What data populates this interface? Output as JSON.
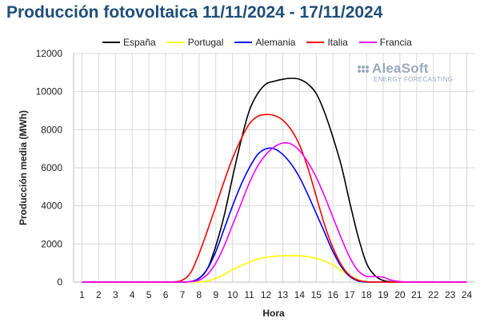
{
  "chart_data": {
    "type": "line",
    "title": "Producción fotovoltaica 11/11/2024 - 17/11/2024",
    "xlabel": "Hora",
    "ylabel": "Producción media (MWh)",
    "ylim": [
      0,
      12000
    ],
    "yticks": [
      0,
      2000,
      4000,
      6000,
      8000,
      10000,
      12000
    ],
    "x": [
      1,
      1.5,
      2,
      2.5,
      3,
      3.5,
      4,
      4.5,
      5,
      5.5,
      6,
      6.5,
      7,
      7.5,
      8,
      8.5,
      9,
      9.5,
      10,
      10.5,
      11,
      11.5,
      12,
      12.5,
      13,
      13.5,
      14,
      14.5,
      15,
      15.5,
      16,
      16.5,
      17,
      17.5,
      18,
      18.5,
      19,
      19.5,
      20,
      20.5,
      21,
      21.5,
      22,
      22.5,
      23,
      23.5,
      24
    ],
    "grid": true,
    "legend_position": "top",
    "series": [
      {
        "name": "España",
        "color": "#000000",
        "values": [
          0,
          0,
          0,
          0,
          0,
          0,
          0,
          0,
          0,
          0,
          0,
          0,
          0,
          20,
          200,
          700,
          1900,
          3500,
          5500,
          7400,
          9000,
          9900,
          10400,
          10550,
          10650,
          10700,
          10650,
          10400,
          9900,
          8900,
          7600,
          6100,
          4200,
          2400,
          1000,
          350,
          80,
          20,
          0,
          0,
          0,
          0,
          0,
          0,
          0,
          0,
          0
        ]
      },
      {
        "name": "Portugal",
        "color": "#ffff00",
        "values": [
          0,
          0,
          0,
          0,
          0,
          0,
          0,
          0,
          0,
          0,
          0,
          0,
          0,
          0,
          0,
          50,
          200,
          400,
          650,
          850,
          1050,
          1200,
          1300,
          1350,
          1380,
          1390,
          1380,
          1330,
          1250,
          1100,
          900,
          600,
          350,
          120,
          20,
          0,
          0,
          0,
          0,
          0,
          0,
          0,
          0,
          0,
          0,
          0,
          0
        ]
      },
      {
        "name": "Alemania",
        "color": "#0000ff",
        "values": [
          0,
          0,
          0,
          0,
          0,
          0,
          0,
          0,
          0,
          0,
          0,
          0,
          0,
          30,
          200,
          700,
          1600,
          2800,
          4000,
          5100,
          6000,
          6700,
          7000,
          7000,
          6700,
          6200,
          5500,
          4600,
          3600,
          2600,
          1600,
          800,
          300,
          60,
          0,
          0,
          0,
          0,
          0,
          0,
          0,
          0,
          0,
          0,
          0,
          0,
          0
        ]
      },
      {
        "name": "Italia",
        "color": "#ff0000",
        "values": [
          0,
          0,
          0,
          0,
          0,
          0,
          0,
          0,
          0,
          0,
          0,
          10,
          100,
          500,
          1500,
          2700,
          4000,
          5300,
          6500,
          7500,
          8300,
          8700,
          8800,
          8750,
          8500,
          8000,
          7200,
          6000,
          4500,
          3000,
          1800,
          900,
          350,
          100,
          20,
          0,
          0,
          0,
          0,
          0,
          0,
          0,
          0,
          0,
          0,
          0,
          0
        ]
      },
      {
        "name": "Francia",
        "color": "#ff00ff",
        "values": [
          0,
          0,
          0,
          0,
          0,
          0,
          0,
          0,
          0,
          0,
          0,
          0,
          0,
          20,
          100,
          400,
          1000,
          1900,
          3000,
          4100,
          5200,
          6100,
          6700,
          7100,
          7300,
          7250,
          6900,
          6300,
          5500,
          4500,
          3400,
          2300,
          1300,
          600,
          300,
          300,
          250,
          100,
          30,
          0,
          0,
          0,
          0,
          0,
          0,
          0,
          0
        ]
      }
    ]
  },
  "logo": {
    "main": "AleaSoft",
    "sub": "ENERGY FORECASTING"
  }
}
